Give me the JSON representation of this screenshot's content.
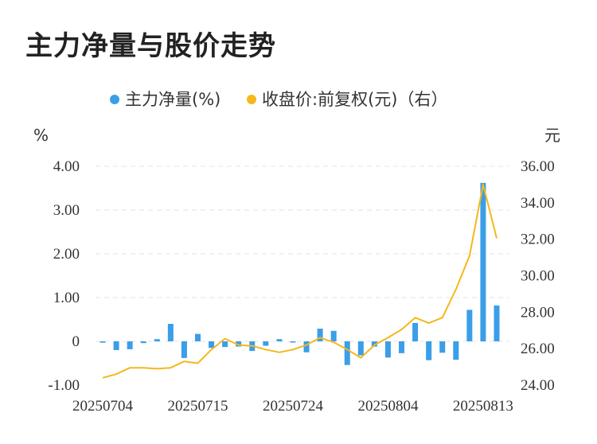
{
  "title": "主力净量与股价走势",
  "chart_data": {
    "type": "bar+line",
    "legend": [
      {
        "name": "主力净量(%)",
        "color": "#3a9ee8",
        "marker": "dot"
      },
      {
        "name": "收盘价:前复权(元)（右）",
        "color": "#f4b81c",
        "marker": "dot"
      }
    ],
    "y_left": {
      "unit": "%",
      "min": -1,
      "max": 4,
      "ticks": [
        -1,
        0,
        1,
        2,
        3,
        4
      ],
      "tick_labels": [
        "-1.00",
        "0",
        "1.00",
        "2.00",
        "3.00",
        "4.00"
      ]
    },
    "y_right": {
      "unit": "元",
      "min": 24,
      "max": 36,
      "ticks": [
        24,
        26,
        28,
        30,
        32,
        34,
        36
      ],
      "tick_labels": [
        "24.00",
        "26.00",
        "28.00",
        "30.00",
        "32.00",
        "34.00",
        "36.00"
      ]
    },
    "x_tick_labels": [
      "20250704",
      "20250715",
      "20250724",
      "20250804",
      "20250813"
    ],
    "x_tick_indices": [
      0,
      7,
      14,
      21,
      28
    ],
    "series": [
      {
        "name": "主力净量(%)",
        "axis": "left",
        "type": "bar",
        "color": "#3a9ee8",
        "values": [
          -0.03,
          -0.2,
          -0.18,
          -0.04,
          0.05,
          0.4,
          -0.38,
          0.17,
          -0.15,
          -0.13,
          -0.12,
          -0.22,
          -0.1,
          0.05,
          -0.02,
          -0.25,
          0.29,
          0.24,
          -0.54,
          -0.32,
          -0.12,
          -0.37,
          -0.27,
          0.42,
          -0.43,
          -0.26,
          -0.42,
          0.72,
          3.62,
          0.82
        ]
      },
      {
        "name": "收盘价:前复权(元)（右）",
        "axis": "right",
        "type": "line",
        "color": "#f4b81c",
        "values": [
          24.4,
          24.6,
          24.95,
          24.95,
          24.9,
          24.95,
          25.3,
          25.2,
          25.95,
          26.55,
          26.2,
          26.15,
          25.95,
          25.8,
          25.95,
          26.2,
          26.6,
          26.35,
          25.95,
          25.5,
          26.2,
          26.6,
          27.05,
          27.7,
          27.4,
          27.7,
          29.25,
          31.1,
          35.0,
          32.05
        ]
      }
    ],
    "grid": "horizontal-dashed"
  }
}
